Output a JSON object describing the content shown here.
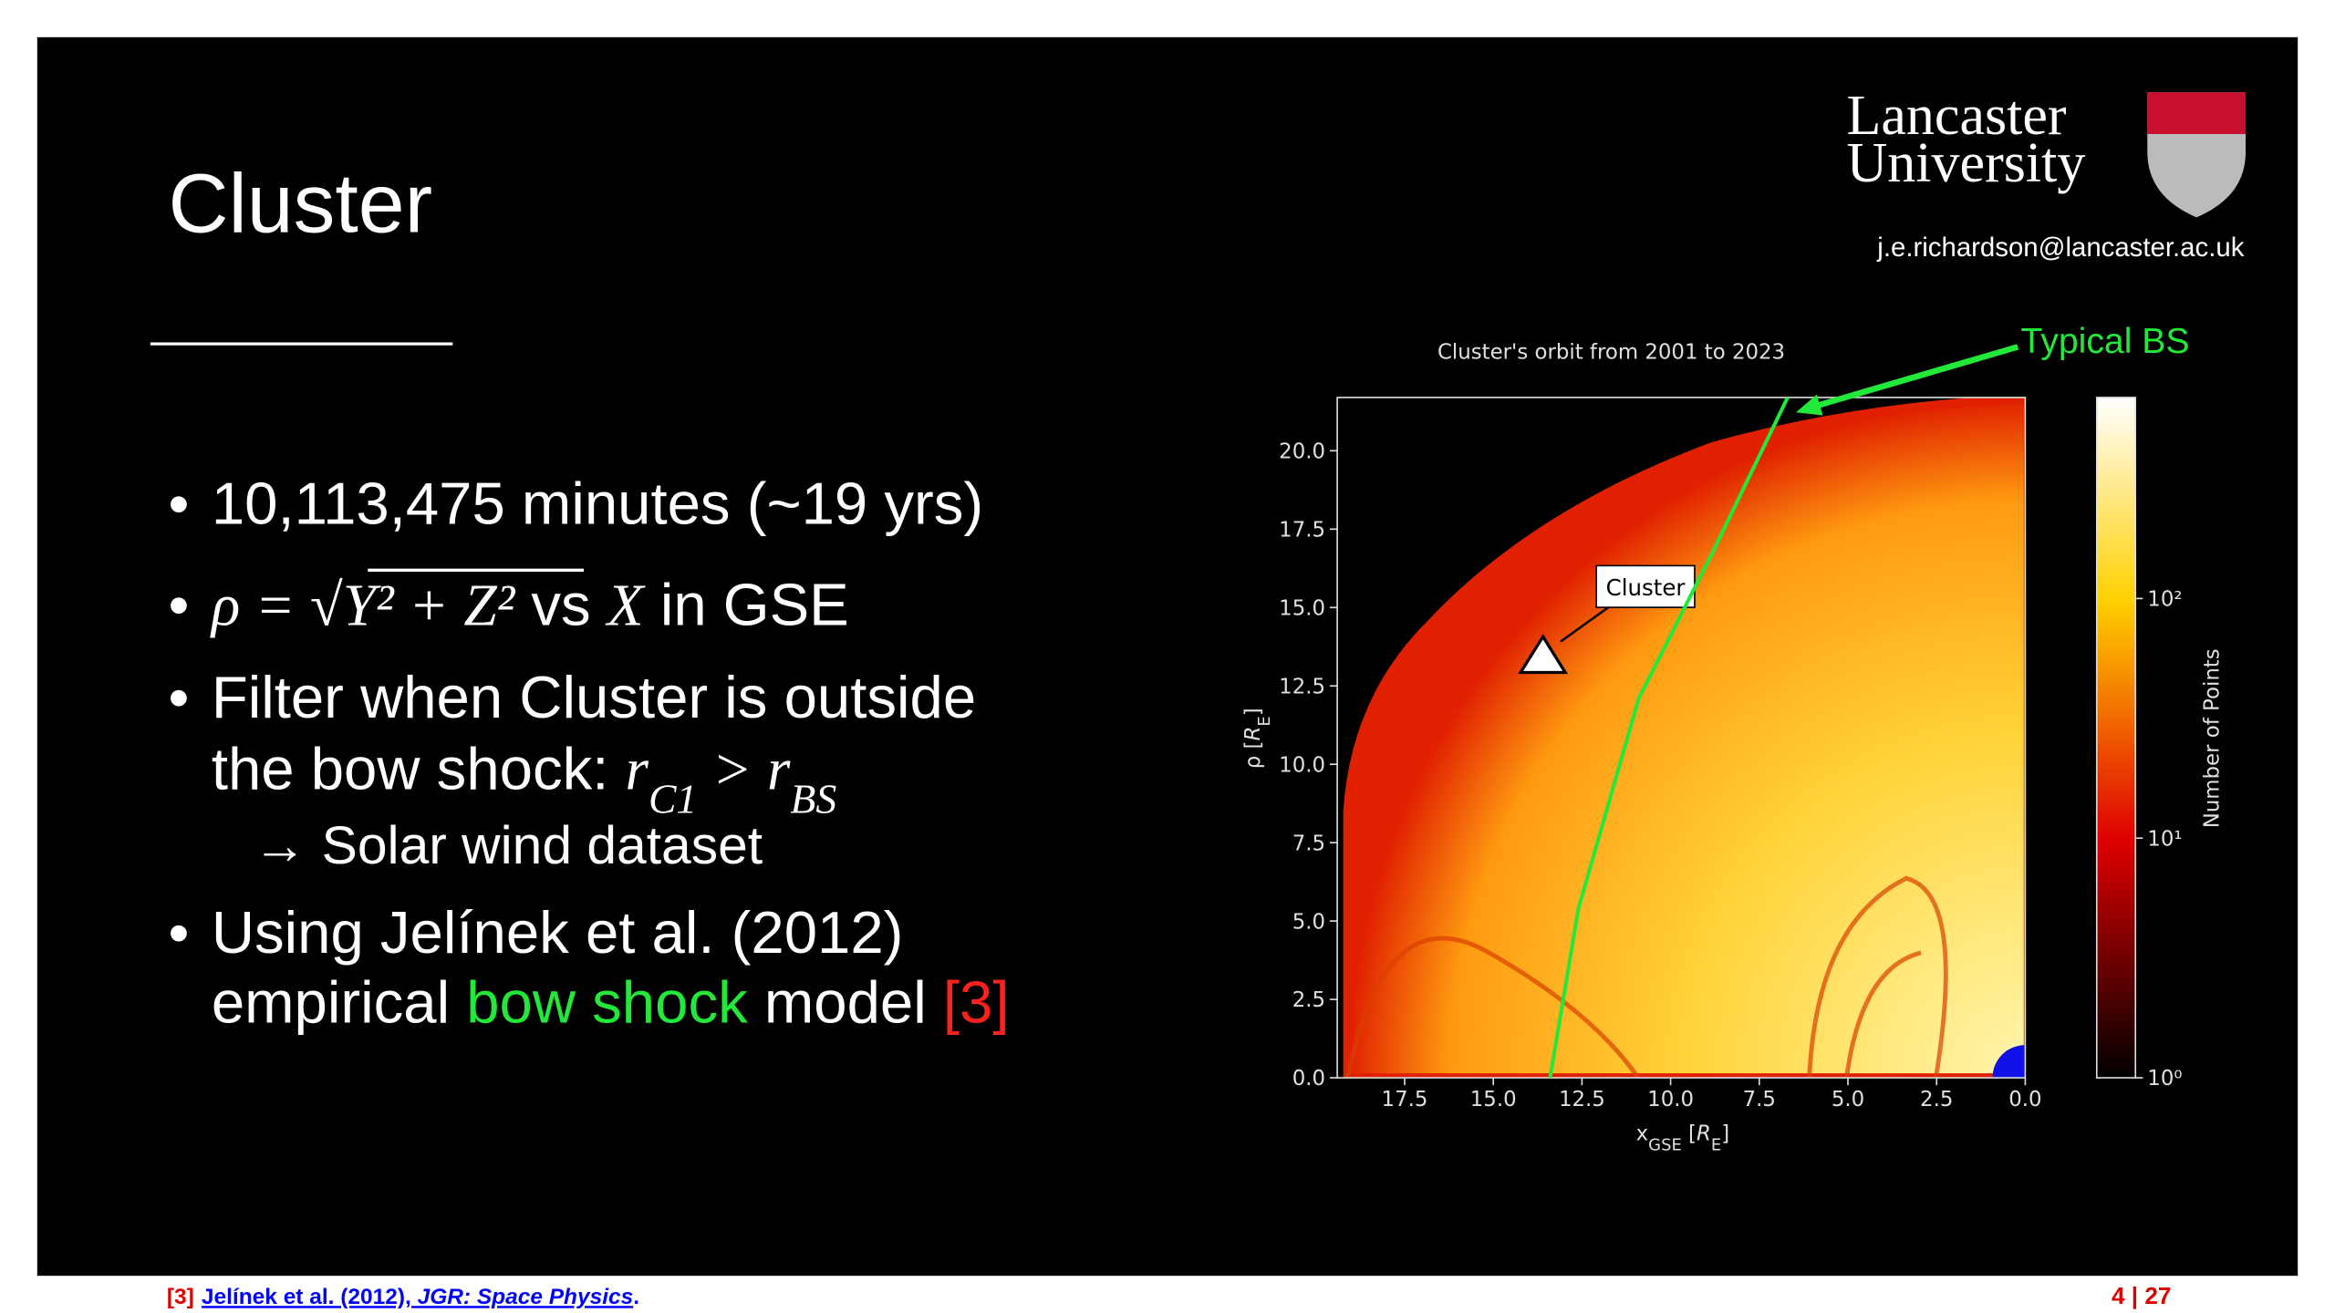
{
  "slide": {
    "title": "Cluster",
    "logo": {
      "line1": "Lancaster",
      "line2": "University"
    },
    "email": "j.e.richardson@lancaster.ac.uk",
    "bullets": [
      {
        "lines": [
          [
            "10,113,475 minutes (~19 yrs)"
          ]
        ]
      },
      {
        "lines": [
          [
            "ρ = √",
            "Y² + Z²",
            " vs ",
            "X",
            " in GSE"
          ]
        ]
      },
      {
        "lines": [
          [
            "Filter when Cluster is outside"
          ],
          [
            "the bow shock: ",
            "r",
            "C1",
            " > ",
            "r",
            "BS"
          ]
        ],
        "sub": "→  Solar wind dataset"
      },
      {
        "lines": [
          [
            "Using Jelínek et al. (2012)"
          ],
          [
            "empirical ",
            "bow shock",
            " model ",
            "[3]"
          ]
        ]
      }
    ],
    "footer": {
      "ref_num": "[3]",
      "ref_text": "Jelínek et al. (2012), ",
      "journal": "JGR: Space Physics",
      "period": ".",
      "page": "4 | 27"
    }
  },
  "figure": {
    "title": "Cluster's orbit from 2001 to 2023",
    "xlabel": [
      "x",
      "GSE",
      " [",
      "R",
      "E",
      "]"
    ],
    "ylabel": [
      "ρ [",
      "R",
      "E",
      "]"
    ],
    "xlim": [
      19.4,
      0
    ],
    "xticks": [
      17.5,
      {
        "value": 15,
        "label": "15.0"
      },
      12.5,
      {
        "value": 10,
        "label": "10.0"
      },
      7.5,
      {
        "value": 5,
        "label": "5.0"
      },
      2.5,
      {
        "value": 0,
        "label": "0.0"
      }
    ],
    "ylim": [
      0,
      21.7
    ],
    "yticks": [
      {
        "value": 0,
        "label": "0.0"
      },
      2.5,
      {
        "value": 5,
        "label": "5.0"
      },
      7.5,
      {
        "value": 10,
        "label": "10.0"
      },
      12.5,
      {
        "value": 15,
        "label": "15.0"
      },
      17.5,
      {
        "value": 20,
        "label": "20.0"
      }
    ],
    "colorbar": {
      "label": "Number of Points",
      "log_scale": true,
      "lim": [
        1,
        690
      ],
      "ticks": [
        {
          "value": 1,
          "label": "10⁰"
        },
        {
          "value": 10,
          "label": "10¹"
        },
        {
          "value": 100,
          "label": "10²"
        }
      ]
    },
    "bow_shock": {
      "name": "Typical BS",
      "color": "#22e83a",
      "x": [
        13.4,
        12.6,
        10.9,
        8.8,
        6.7
      ],
      "y": [
        0,
        5.4,
        12.1,
        16.8,
        21.7
      ]
    },
    "cluster_marker": {
      "label": "Cluster",
      "x": 13.6,
      "y": 13.5
    }
  }
}
